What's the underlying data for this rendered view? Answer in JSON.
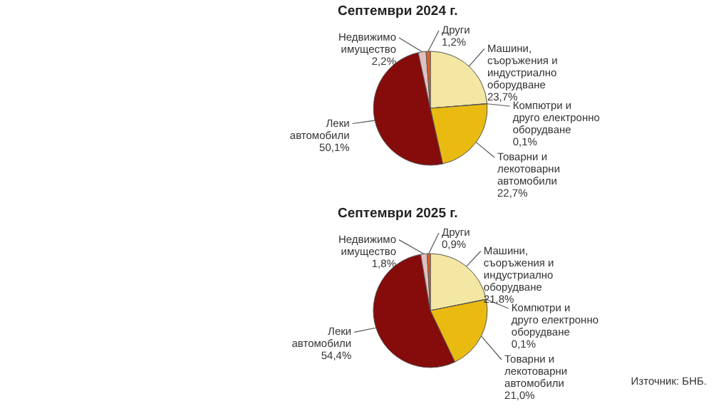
{
  "chart_data": [
    {
      "type": "pie",
      "title": "Септември 2024 г.",
      "categories": [
        "Машини,\nсъоръжения и\nиндустриално\nоборудване",
        "Компютри и\nдруго електронно\nоборудване",
        "Товарни и\nлекотоварни\nавтомобили",
        "Леки\nавтомобили",
        "Недвижимо\nимущество",
        "Други"
      ],
      "values": [
        23.7,
        0.1,
        22.7,
        50.1,
        2.2,
        1.2
      ],
      "value_labels": [
        "23,7%",
        "0,1%",
        "22,7%",
        "50,1%",
        "2,2%",
        "1,2%"
      ],
      "colors": [
        "#f3e7a3",
        "#c9962e",
        "#e9bb10",
        "#860b0b",
        "#e2c0c0",
        "#e0602a"
      ]
    },
    {
      "type": "pie",
      "title": "Септември 2025 г.",
      "categories": [
        "Машини,\nсъоръжения и\nиндустриално\nоборудване",
        "Компютри и\nдруго електронно\nоборудване",
        "Товарни и\nлекотоварни\nавтомобили",
        "Леки\nавтомобили",
        "Недвижимо\nимущество",
        "Други"
      ],
      "values": [
        21.8,
        0.1,
        21.0,
        54.4,
        1.8,
        0.9
      ],
      "value_labels": [
        "21,8%",
        "0,1%",
        "21,0%",
        "54,4%",
        "1,8%",
        "0,9%"
      ],
      "colors": [
        "#f3e7a3",
        "#c9962e",
        "#e9bb10",
        "#860b0b",
        "#e2c0c0",
        "#e0602a"
      ],
      "annotations": [
        "Източник: БНБ."
      ]
    }
  ]
}
